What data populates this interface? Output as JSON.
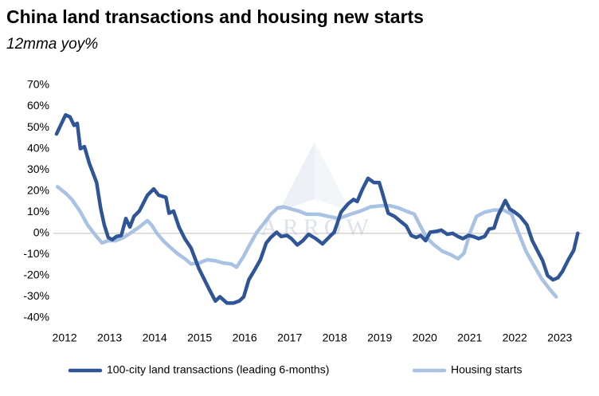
{
  "chart_data": {
    "type": "line",
    "title": "China land transactions and housing new starts",
    "subtitle": "12mma yoy%",
    "watermark": "ARROW",
    "xlim": [
      2011.75,
      2023.5
    ],
    "xticks": [
      2012,
      2013,
      2014,
      2015,
      2016,
      2017,
      2018,
      2019,
      2020,
      2021,
      2022,
      2023
    ],
    "ylim": [
      -40,
      70
    ],
    "yticks": [
      {
        "value": -40,
        "label": "-40%"
      },
      {
        "value": -30,
        "label": "-30%"
      },
      {
        "value": -20,
        "label": "-20%"
      },
      {
        "value": -10,
        "label": "-10%"
      },
      {
        "value": 0,
        "label": "0%"
      },
      {
        "value": 10,
        "label": "10%"
      },
      {
        "value": 20,
        "label": "20%"
      },
      {
        "value": 30,
        "label": "30%"
      },
      {
        "value": 40,
        "label": "40%"
      },
      {
        "value": 50,
        "label": "50%"
      },
      {
        "value": 60,
        "label": "60%"
      },
      {
        "value": 70,
        "label": "70%"
      }
    ],
    "zero_line": true,
    "series": [
      {
        "name": "100-city land transactions (leading 6-months)",
        "color": "#2f5597",
        "x": [
          2011.82,
          2012.02,
          2012.12,
          2012.21,
          2012.28,
          2012.35,
          2012.44,
          2012.55,
          2012.71,
          2012.8,
          2012.88,
          2012.97,
          2013.06,
          2013.15,
          2013.26,
          2013.36,
          2013.45,
          2013.54,
          2013.66,
          2013.84,
          2013.98,
          2014.09,
          2014.25,
          2014.32,
          2014.42,
          2014.54,
          2014.67,
          2014.81,
          2014.98,
          2015.2,
          2015.35,
          2015.45,
          2015.61,
          2015.75,
          2015.88,
          2015.98,
          2016.09,
          2016.23,
          2016.35,
          2016.48,
          2016.58,
          2016.71,
          2016.81,
          2016.94,
          2017.04,
          2017.17,
          2017.29,
          2017.42,
          2017.58,
          2017.73,
          2017.89,
          2017.99,
          2018.14,
          2018.3,
          2018.42,
          2018.5,
          2018.62,
          2018.74,
          2018.87,
          2018.99,
          2019.06,
          2019.19,
          2019.33,
          2019.47,
          2019.59,
          2019.7,
          2019.81,
          2019.91,
          2020.02,
          2020.12,
          2020.27,
          2020.37,
          2020.5,
          2020.62,
          2020.74,
          2020.85,
          2020.97,
          2021.08,
          2021.2,
          2021.33,
          2021.43,
          2021.54,
          2021.63,
          2021.79,
          2021.89,
          2022.0,
          2022.12,
          2022.27,
          2022.39,
          2022.51,
          2022.62,
          2022.73,
          2022.85,
          2022.96,
          2023.06,
          2023.19,
          2023.31,
          2023.4
        ],
        "values": [
          47,
          56,
          55,
          51,
          52,
          40,
          41,
          33,
          24,
          12,
          4,
          -2,
          -3,
          -1.5,
          -1,
          7,
          3,
          8,
          10.5,
          18,
          21,
          18,
          17,
          9.5,
          10.5,
          3,
          -2.5,
          -7,
          -16.5,
          -26,
          -32,
          -30,
          -33,
          -33,
          -32,
          -30,
          -22,
          -17,
          -12.5,
          -4.5,
          -2,
          0.5,
          -1.5,
          -1,
          -2.5,
          -5.5,
          -3.5,
          -0.5,
          -2.5,
          -5,
          -1.5,
          0.5,
          10,
          14,
          16,
          15,
          21,
          26,
          24,
          24,
          19,
          9.5,
          8,
          5.5,
          3.5,
          -1,
          -2,
          -1,
          -3.5,
          0.5,
          1,
          1.5,
          -0.5,
          0,
          -1.5,
          -2.5,
          -1,
          -1.5,
          -2.5,
          -1.5,
          2,
          2.5,
          8.5,
          15.5,
          11.5,
          10,
          8,
          4,
          -3.5,
          -8.5,
          -13,
          -20,
          -22,
          -21,
          -18,
          -12.5,
          -8,
          0
        ]
      },
      {
        "name": "Housing starts",
        "color": "#a9c1e3",
        "x": [
          2011.84,
          2012.02,
          2012.16,
          2012.34,
          2012.51,
          2012.69,
          2012.83,
          2012.97,
          2013.13,
          2013.31,
          2013.49,
          2013.66,
          2013.84,
          2013.93,
          2014.05,
          2014.19,
          2014.34,
          2014.5,
          2014.67,
          2014.81,
          2014.99,
          2015.17,
          2015.35,
          2015.52,
          2015.7,
          2015.82,
          2015.96,
          2016.11,
          2016.27,
          2016.44,
          2016.58,
          2016.73,
          2016.87,
          2017.03,
          2017.2,
          2017.38,
          2017.65,
          2017.86,
          2018.09,
          2018.35,
          2018.57,
          2018.8,
          2019.03,
          2019.24,
          2019.42,
          2019.59,
          2019.77,
          2019.89,
          2020.04,
          2020.21,
          2020.39,
          2020.57,
          2020.74,
          2020.87,
          2021.01,
          2021.15,
          2021.33,
          2021.54,
          2021.75,
          2021.93,
          2022.07,
          2022.25,
          2022.42,
          2022.6,
          2022.78,
          2022.92
        ],
        "values": [
          22,
          19,
          16,
          10.5,
          4,
          -1,
          -4.5,
          -3.5,
          -3.5,
          -2,
          0.5,
          3,
          6,
          4,
          0,
          -3.5,
          -6.5,
          -9.5,
          -12,
          -14.5,
          -14,
          -12.5,
          -13,
          -14,
          -14.5,
          -16,
          -11.5,
          -5.5,
          0.5,
          5,
          9,
          12,
          12.5,
          11.5,
          10.5,
          9,
          9,
          8,
          7,
          9,
          10.5,
          12.5,
          13,
          13,
          12,
          10.5,
          9,
          4,
          -2,
          -5.5,
          -8.5,
          -10,
          -12,
          -9.5,
          0.5,
          8,
          10,
          11,
          11,
          9,
          1,
          -8.5,
          -15,
          -21.5,
          -26.5,
          -30
        ]
      }
    ]
  }
}
